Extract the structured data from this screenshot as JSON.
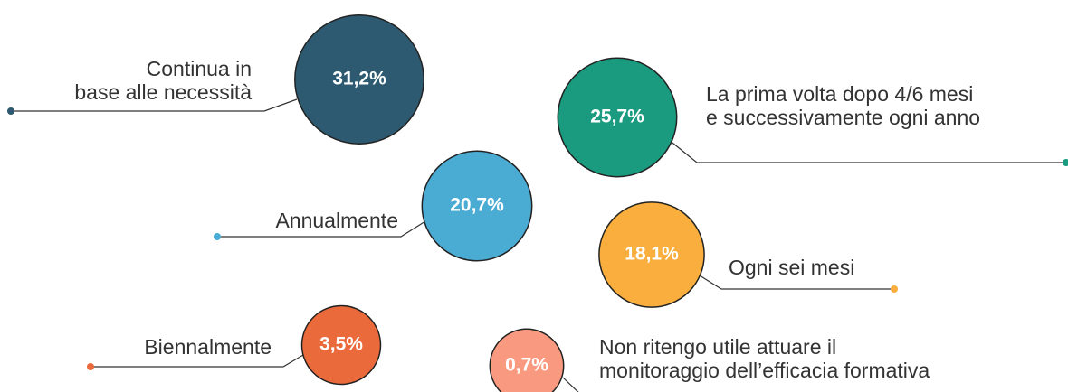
{
  "chart_data": {
    "type": "bubble",
    "categories": [
      [
        "Continua in",
        "base alle necessità"
      ],
      [
        "La prima volta dopo 4/6 mesi",
        "e successivamente ogni anno"
      ],
      [
        "Annualmente"
      ],
      [
        "Ogni sei mesi"
      ],
      [
        "Biennalmente"
      ],
      [
        "Non ritengo utile attuare il",
        "monitoraggio dell’efficacia formativa"
      ]
    ],
    "values": [
      31.2,
      25.7,
      20.7,
      18.1,
      3.5,
      0.7
    ],
    "value_labels": [
      "31,2%",
      "25,7%",
      "20,7%",
      "18,1%",
      "3,5%",
      "0,7%"
    ],
    "colors": [
      "#2d5a70",
      "#1a9b7f",
      "#4aabd3",
      "#f9ae3d",
      "#ea6a3c",
      "#f99a80"
    ]
  }
}
